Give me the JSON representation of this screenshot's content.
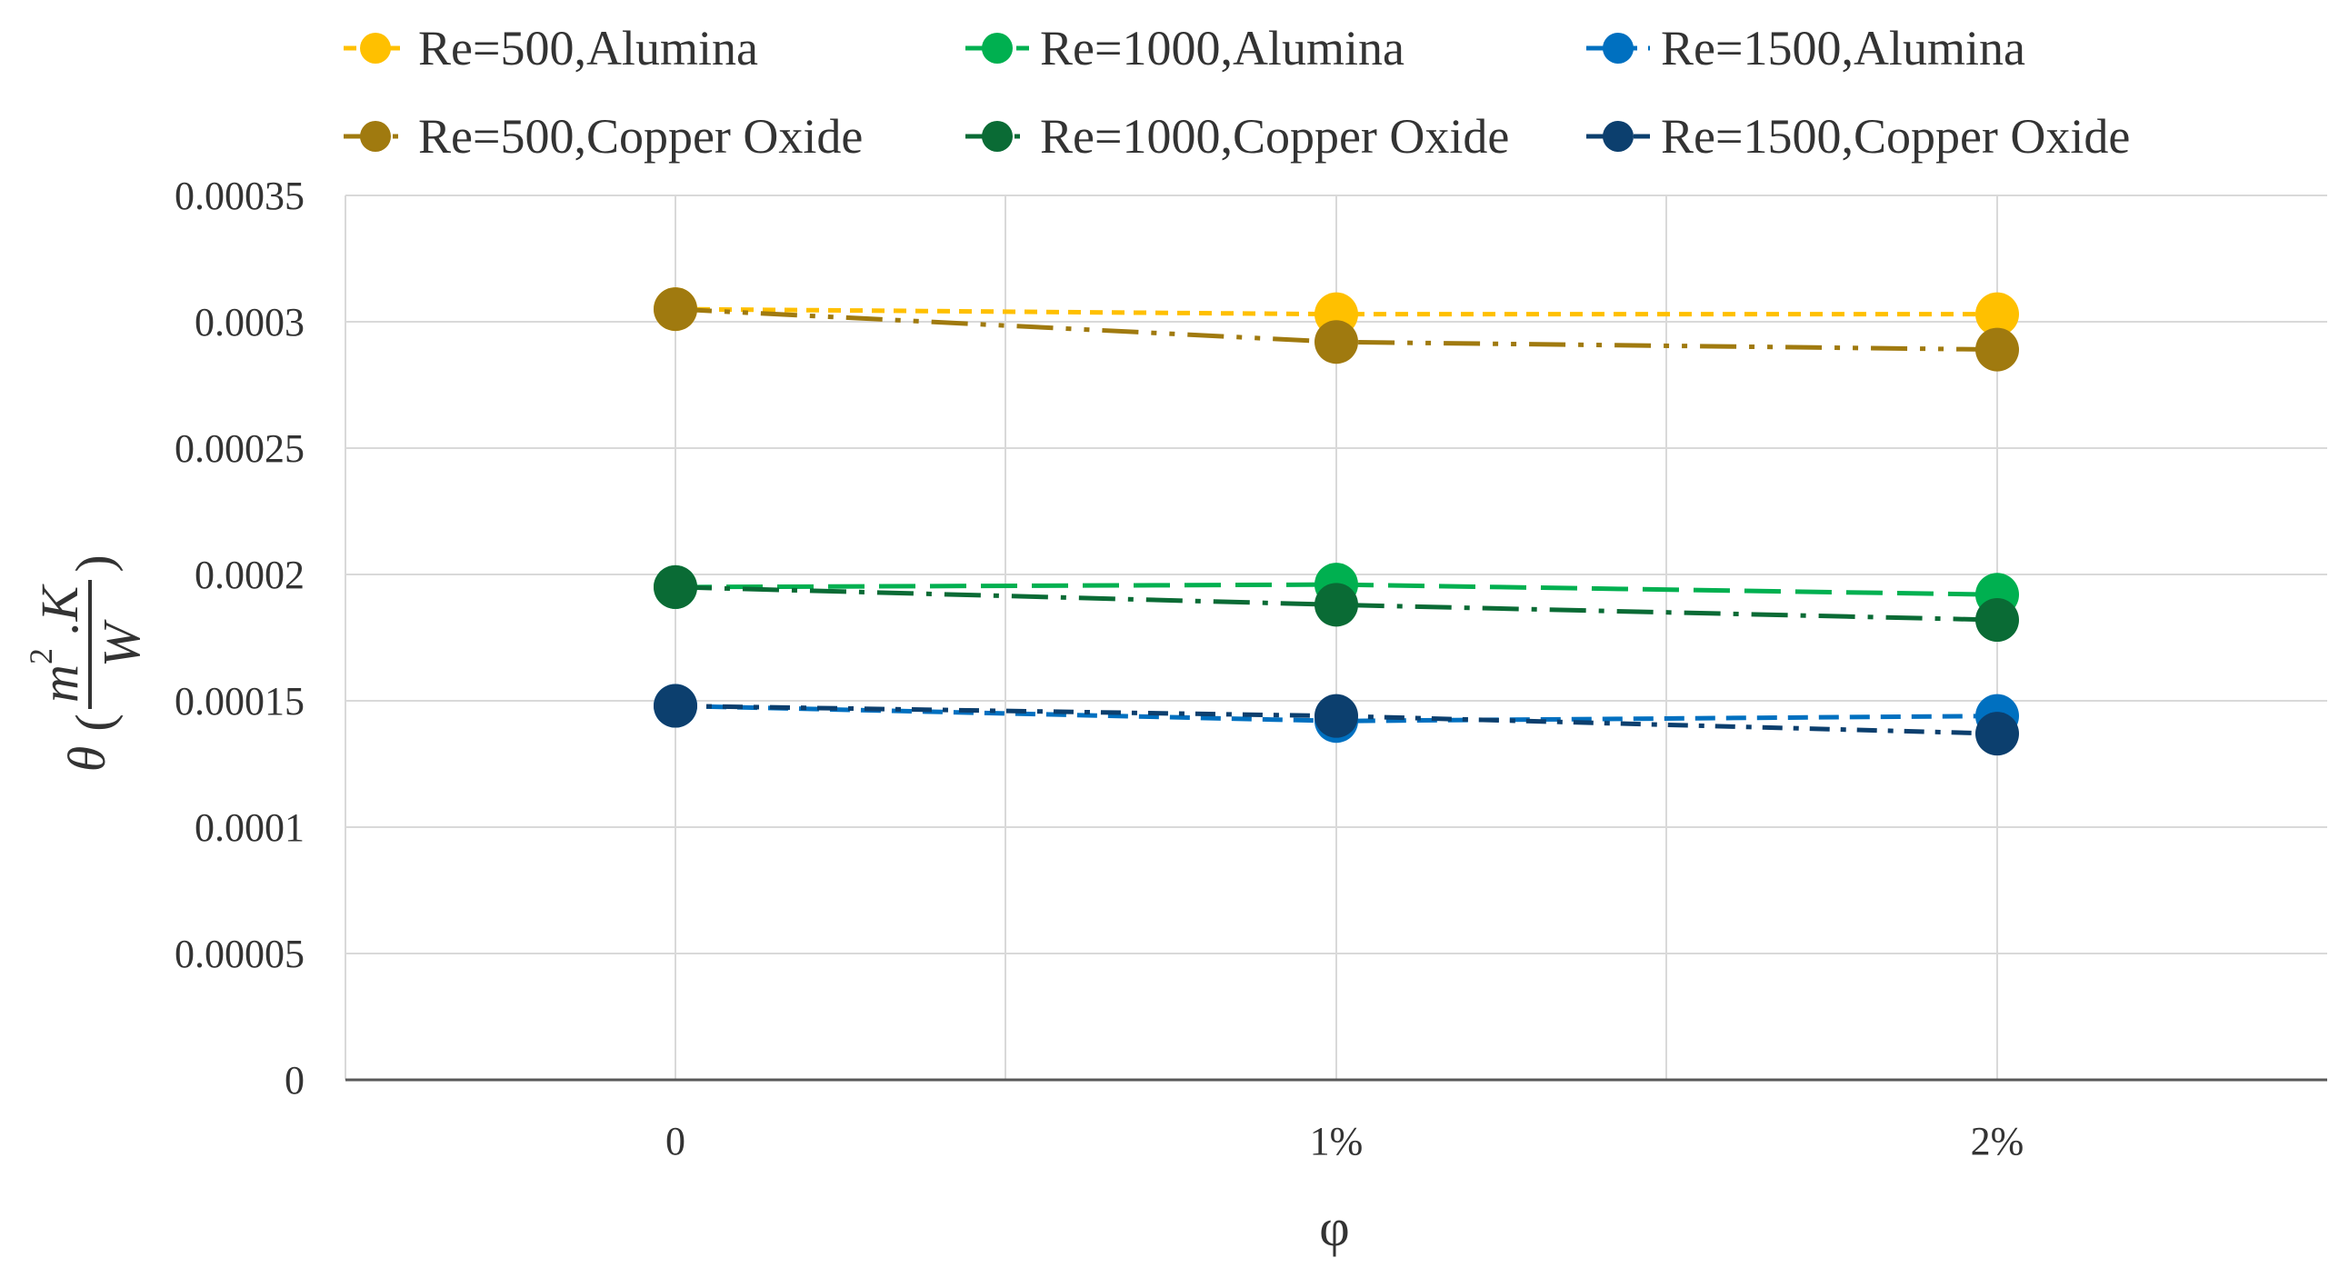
{
  "chart_data": {
    "type": "line",
    "title": "",
    "xlabel": "φ",
    "ylabel": {
      "symbol": "θ",
      "numerator": "m",
      "exponent": "2",
      "unit_suffix": ".K",
      "denominator": "W",
      "open_paren": "(",
      "close_paren": ")"
    },
    "categories": [
      "0",
      "1%",
      "2%"
    ],
    "ylim": [
      0,
      0.00035
    ],
    "yticks": [
      "0",
      "0.00005",
      "0.0001",
      "0.00015",
      "0.0002",
      "0.00025",
      "0.0003",
      "0.00035"
    ],
    "grid": true,
    "legend_position": "top",
    "series": [
      {
        "name": "Re=500,Alumina",
        "color": "#FFC000",
        "dash": "short-dash",
        "values": [
          0.000305,
          0.000303,
          0.000303
        ]
      },
      {
        "name": "Re=1000,Alumina",
        "color": "#00B050",
        "dash": "long-dash",
        "values": [
          0.000195,
          0.000196,
          0.000192
        ]
      },
      {
        "name": "Re=1500,Alumina",
        "color": "#0070C0",
        "dash": "dash",
        "values": [
          0.000148,
          0.000142,
          0.000144
        ]
      },
      {
        "name": "Re=500,Copper Oxide",
        "color": "#A07A0F",
        "dash": "long-dash-dot-dot",
        "values": [
          0.000305,
          0.000292,
          0.000289
        ]
      },
      {
        "name": "Re=1000,Copper Oxide",
        "color": "#0A6B35",
        "dash": "long-dash-dot",
        "values": [
          0.000195,
          0.000188,
          0.000182
        ]
      },
      {
        "name": "Re=1500,Copper Oxide",
        "color": "#0C3F6E",
        "dash": "dash-dot",
        "values": [
          0.000148,
          0.000144,
          0.000137
        ]
      }
    ]
  }
}
